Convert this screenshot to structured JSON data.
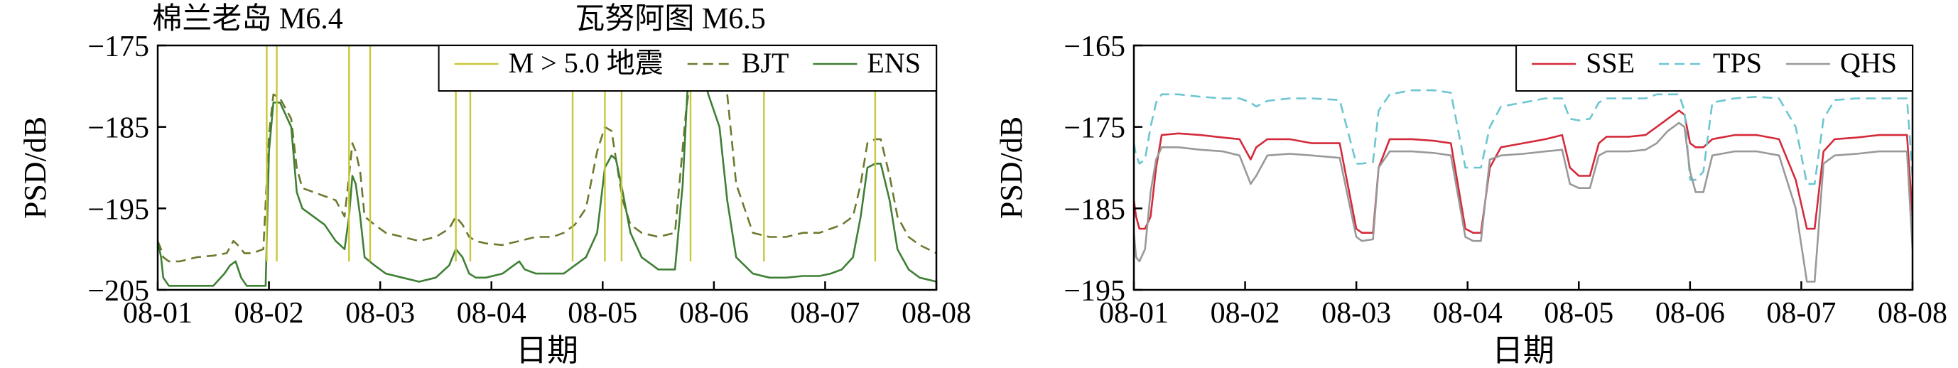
{
  "chart_data": [
    {
      "type": "line",
      "ylabel": "PSD/dB",
      "xlabel": "日期",
      "xlim": [
        1,
        8
      ],
      "ylim": [
        -205,
        -175
      ],
      "xticks": [
        1,
        2,
        3,
        4,
        5,
        6,
        7,
        8
      ],
      "xtick_labels": [
        "08-01",
        "08-02",
        "08-03",
        "08-04",
        "08-05",
        "08-06",
        "08-07",
        "08-08"
      ],
      "yticks": [
        -205,
        -195,
        -185,
        -175
      ],
      "ytick_labels": [
        "−205",
        "−195",
        "−185",
        "−175"
      ],
      "legend_position": "top-right",
      "annotations": [
        {
          "text": "棉兰老岛 M6.4",
          "x": 2.0
        },
        {
          "text": "瓦努阿图 M6.5",
          "x": 5.8
        }
      ],
      "earthquakes": {
        "name": "M > 5.0 地震",
        "color": "#c8c83a",
        "times": [
          1.98,
          2.07,
          2.72,
          2.91,
          3.68,
          3.81,
          4.73,
          5.02,
          5.17,
          5.79,
          6.45,
          7.45
        ]
      },
      "series": [
        {
          "name": "BJT",
          "color": "#6b7a2e",
          "dash": true,
          "x": [
            1.0,
            1.03,
            1.05,
            1.1,
            1.2,
            1.35,
            1.5,
            1.62,
            1.68,
            1.72,
            1.78,
            1.85,
            1.95,
            2.0,
            2.04,
            2.1,
            2.2,
            2.25,
            2.3,
            2.4,
            2.5,
            2.6,
            2.68,
            2.72,
            2.75,
            2.78,
            2.82,
            2.86,
            2.95,
            3.05,
            3.2,
            3.35,
            3.5,
            3.62,
            3.68,
            3.74,
            3.8,
            3.86,
            3.95,
            4.1,
            4.25,
            4.4,
            4.55,
            4.65,
            4.75,
            4.85,
            4.95,
            5.02,
            5.08,
            5.12,
            5.18,
            5.25,
            5.35,
            5.5,
            5.65,
            5.75,
            5.8,
            5.85,
            5.95,
            6.05,
            6.12,
            6.2,
            6.35,
            6.5,
            6.65,
            6.8,
            6.95,
            7.05,
            7.15,
            7.25,
            7.32,
            7.38,
            7.45,
            7.5,
            7.58,
            7.65,
            7.75,
            7.85,
            8.0
          ],
          "values": [
            -199,
            -200,
            -201,
            -201.5,
            -201.5,
            -201,
            -200.8,
            -200.5,
            -199,
            -199.5,
            -200.5,
            -200.5,
            -200,
            -186,
            -181,
            -181.5,
            -184,
            -190,
            -192.5,
            -193,
            -193.5,
            -194,
            -196,
            -191,
            -187,
            -188,
            -190.5,
            -196,
            -197,
            -198,
            -198.5,
            -199,
            -198.5,
            -197.5,
            -196,
            -197,
            -198.5,
            -199,
            -199.3,
            -199.5,
            -199,
            -198.5,
            -198.5,
            -198,
            -197,
            -195,
            -188,
            -185,
            -185.5,
            -189,
            -194,
            -197,
            -198,
            -198.5,
            -198,
            -183,
            -178,
            -175,
            -175,
            -177,
            -181,
            -192,
            -198,
            -198.5,
            -198.5,
            -198,
            -198,
            -197.5,
            -197,
            -196,
            -192,
            -187,
            -186.5,
            -186.5,
            -191,
            -196,
            -198.5,
            -199.5,
            -200.5
          ]
        },
        {
          "name": "ENS",
          "color": "#3f7f35",
          "dash": false,
          "x": [
            1.0,
            1.03,
            1.05,
            1.1,
            1.2,
            1.35,
            1.5,
            1.6,
            1.65,
            1.7,
            1.75,
            1.8,
            1.9,
            1.97,
            2.0,
            2.04,
            2.1,
            2.2,
            2.25,
            2.3,
            2.4,
            2.5,
            2.6,
            2.68,
            2.72,
            2.75,
            2.78,
            2.82,
            2.86,
            2.95,
            3.05,
            3.2,
            3.35,
            3.5,
            3.62,
            3.68,
            3.74,
            3.8,
            3.86,
            3.95,
            4.1,
            4.2,
            4.25,
            4.3,
            4.4,
            4.55,
            4.65,
            4.75,
            4.85,
            4.95,
            5.02,
            5.08,
            5.12,
            5.18,
            5.25,
            5.35,
            5.5,
            5.65,
            5.72,
            5.76,
            5.8,
            5.85,
            5.95,
            6.05,
            6.12,
            6.2,
            6.35,
            6.5,
            6.65,
            6.8,
            6.95,
            7.05,
            7.15,
            7.25,
            7.32,
            7.38,
            7.45,
            7.5,
            7.58,
            7.65,
            7.75,
            7.85,
            8.0
          ],
          "values": [
            -199,
            -201,
            -203.5,
            -204.5,
            -204.5,
            -204.5,
            -204.5,
            -203,
            -202,
            -201.5,
            -203.5,
            -204.5,
            -204.5,
            -204.5,
            -188,
            -182,
            -182,
            -185,
            -193,
            -195,
            -196,
            -197,
            -199,
            -200,
            -196,
            -191,
            -192,
            -196,
            -201,
            -202,
            -203,
            -203.5,
            -204,
            -203.5,
            -202,
            -200,
            -201,
            -203,
            -203.5,
            -203.5,
            -203,
            -202,
            -201.5,
            -202.5,
            -203,
            -203,
            -203,
            -202,
            -201,
            -198,
            -190,
            -188.5,
            -189,
            -193,
            -198,
            -201,
            -202.5,
            -202.5,
            -192,
            -181,
            -176,
            -176,
            -181,
            -185,
            -194,
            -201,
            -203,
            -203.5,
            -203.5,
            -203.3,
            -203.3,
            -203,
            -202.5,
            -201,
            -196,
            -190,
            -189.5,
            -189.5,
            -194,
            -200,
            -202.5,
            -203.5,
            -204
          ]
        }
      ]
    },
    {
      "type": "line",
      "ylabel": "PSD/dB",
      "xlabel": "日期",
      "xlim": [
        1,
        8
      ],
      "ylim": [
        -195,
        -165
      ],
      "xticks": [
        1,
        2,
        3,
        4,
        5,
        6,
        7,
        8
      ],
      "xtick_labels": [
        "08-01",
        "08-02",
        "08-03",
        "08-04",
        "08-05",
        "08-06",
        "08-07",
        "08-08"
      ],
      "yticks": [
        -195,
        -185,
        -175,
        -165
      ],
      "ytick_labels": [
        "−195",
        "−185",
        "−175",
        "−165"
      ],
      "legend_position": "top-right",
      "series": [
        {
          "name": "SSE",
          "color": "#d42a3a",
          "dash": false,
          "x": [
            1.0,
            1.02,
            1.05,
            1.1,
            1.15,
            1.2,
            1.25,
            1.4,
            1.6,
            1.8,
            1.95,
            2.05,
            2.1,
            2.2,
            2.4,
            2.6,
            2.85,
            3.0,
            3.05,
            3.15,
            3.2,
            3.3,
            3.5,
            3.7,
            3.85,
            3.98,
            4.05,
            4.12,
            4.2,
            4.3,
            4.5,
            4.7,
            4.85,
            4.92,
            5.0,
            5.1,
            5.18,
            5.25,
            5.45,
            5.6,
            5.7,
            5.8,
            5.9,
            5.95,
            6.0,
            6.05,
            6.12,
            6.2,
            6.4,
            6.6,
            6.8,
            6.95,
            7.05,
            7.12,
            7.2,
            7.3,
            7.5,
            7.7,
            7.95,
            8.0
          ],
          "values": [
            -184,
            -186,
            -187.5,
            -187.5,
            -186,
            -180,
            -176,
            -175.8,
            -176,
            -176.3,
            -176.5,
            -179,
            -177.5,
            -176.5,
            -176.5,
            -177,
            -177,
            -187.5,
            -188,
            -188,
            -180,
            -176.5,
            -176.5,
            -176.7,
            -177,
            -187.5,
            -188,
            -188,
            -180,
            -177.5,
            -177,
            -176.5,
            -176,
            -180,
            -181,
            -181,
            -177,
            -176.2,
            -176.2,
            -176,
            -175,
            -174,
            -173,
            -173.5,
            -177,
            -177.5,
            -177.5,
            -176.5,
            -176,
            -176,
            -176.5,
            -181.5,
            -187.5,
            -187.5,
            -178,
            -176.5,
            -176.3,
            -176,
            -176,
            -186
          ]
        },
        {
          "name": "TPS",
          "color": "#6cc6d1",
          "dash": true,
          "x": [
            1.0,
            1.02,
            1.05,
            1.1,
            1.15,
            1.2,
            1.25,
            1.4,
            1.6,
            1.8,
            1.95,
            2.05,
            2.1,
            2.2,
            2.4,
            2.6,
            2.85,
            3.0,
            3.05,
            3.15,
            3.2,
            3.3,
            3.5,
            3.7,
            3.85,
            3.98,
            4.05,
            4.12,
            4.2,
            4.3,
            4.5,
            4.7,
            4.85,
            4.92,
            5.0,
            5.1,
            5.18,
            5.25,
            5.45,
            5.6,
            5.7,
            5.8,
            5.9,
            5.95,
            6.0,
            6.05,
            6.12,
            6.2,
            6.4,
            6.6,
            6.8,
            6.95,
            7.05,
            7.12,
            7.2,
            7.3,
            7.5,
            7.7,
            7.95,
            8.0
          ],
          "values": [
            -177,
            -178.5,
            -179.5,
            -179,
            -175,
            -172,
            -171,
            -171,
            -171.3,
            -171.5,
            -171.5,
            -172,
            -172.5,
            -171.8,
            -171.5,
            -171.5,
            -171.7,
            -179.5,
            -179.5,
            -179.3,
            -173,
            -171,
            -170.5,
            -170.5,
            -170.8,
            -180,
            -180,
            -180,
            -175,
            -172.5,
            -172,
            -171.5,
            -171.5,
            -174,
            -174.2,
            -174,
            -172,
            -171.5,
            -171.5,
            -171.5,
            -171,
            -171,
            -171,
            -173,
            -181.5,
            -181.5,
            -180.5,
            -172,
            -171.5,
            -171.3,
            -171.5,
            -175,
            -182,
            -182,
            -174,
            -171.7,
            -171.5,
            -171.5,
            -171.5,
            -181
          ]
        },
        {
          "name": "QHS",
          "color": "#999999",
          "dash": false,
          "x": [
            1.0,
            1.02,
            1.05,
            1.1,
            1.15,
            1.2,
            1.25,
            1.4,
            1.6,
            1.8,
            1.95,
            2.05,
            2.1,
            2.2,
            2.4,
            2.6,
            2.85,
            3.0,
            3.05,
            3.15,
            3.2,
            3.3,
            3.5,
            3.7,
            3.85,
            3.98,
            4.05,
            4.12,
            4.2,
            4.3,
            4.5,
            4.7,
            4.85,
            4.92,
            5.0,
            5.1,
            5.18,
            5.25,
            5.45,
            5.6,
            5.7,
            5.8,
            5.9,
            5.95,
            6.0,
            6.05,
            6.12,
            6.2,
            6.4,
            6.6,
            6.8,
            6.95,
            7.05,
            7.12,
            7.2,
            7.3,
            7.5,
            7.7,
            7.95,
            8.0
          ],
          "values": [
            -188,
            -191,
            -191.5,
            -190,
            -183,
            -179,
            -177.5,
            -177.5,
            -177.8,
            -178,
            -178.5,
            -182,
            -181,
            -178.5,
            -178.3,
            -178.5,
            -178.8,
            -188.5,
            -189,
            -188.8,
            -180,
            -178,
            -178,
            -178.2,
            -178.5,
            -188.5,
            -189,
            -189,
            -179,
            -178.5,
            -178.3,
            -178,
            -177.8,
            -182,
            -182.5,
            -182.5,
            -178.5,
            -178,
            -178,
            -177.8,
            -177,
            -175.5,
            -174.5,
            -175,
            -180.5,
            -183,
            -183,
            -178.5,
            -178,
            -178,
            -178.5,
            -185,
            -194,
            -194,
            -179.5,
            -178.5,
            -178.3,
            -178,
            -178,
            -190
          ]
        }
      ]
    }
  ]
}
